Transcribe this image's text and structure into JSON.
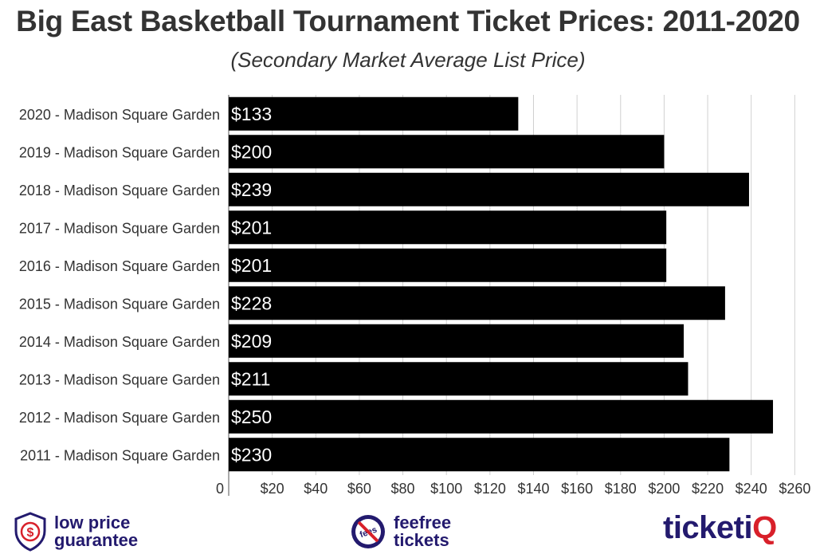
{
  "header": {
    "title": "Big East Basketball Tournament Ticket Prices: 2011-2020",
    "subtitle": "(Secondary Market Average List Price)"
  },
  "chart_data": {
    "type": "bar",
    "orientation": "horizontal",
    "categories": [
      "2020 - Madison Square Garden",
      "2019 - Madison Square Garden",
      "2018 - Madison Square Garden",
      "2017 - Madison Square Garden",
      "2016 - Madison Square Garden",
      "2015 - Madison Square Garden",
      "2014 - Madison Square Garden",
      "2013 - Madison Square Garden",
      "2012 - Madison Square Garden",
      "2011 - Madison Square Garden"
    ],
    "values": [
      133,
      200,
      239,
      201,
      201,
      228,
      209,
      211,
      250,
      230
    ],
    "value_labels": [
      "$133",
      "$200",
      "$239",
      "$201",
      "$201",
      "$228",
      "$209",
      "$211",
      "$250",
      "$230"
    ],
    "x_ticks": [
      0,
      20,
      40,
      60,
      80,
      100,
      120,
      140,
      160,
      180,
      200,
      220,
      240,
      260
    ],
    "x_tick_labels": [
      "0",
      "$20",
      "$40",
      "$60",
      "$80",
      "$100",
      "$120",
      "$140",
      "$160",
      "$180",
      "$200",
      "$220",
      "$240",
      "$260"
    ],
    "xlim": [
      0,
      265
    ],
    "grid": "vertical",
    "bar_color": "#000000",
    "label_color": "#ffffff"
  },
  "footer": {
    "badge_line1": "low price",
    "badge_line2": "guarantee",
    "badge_icon_text": "$",
    "fees_line1": "feefree",
    "fees_line2": "tickets",
    "fees_icon_text": "fees",
    "logo_main": "ticketi",
    "logo_accent": "Q",
    "brand_color": "#231a6e",
    "accent_color": "#d8202a"
  }
}
